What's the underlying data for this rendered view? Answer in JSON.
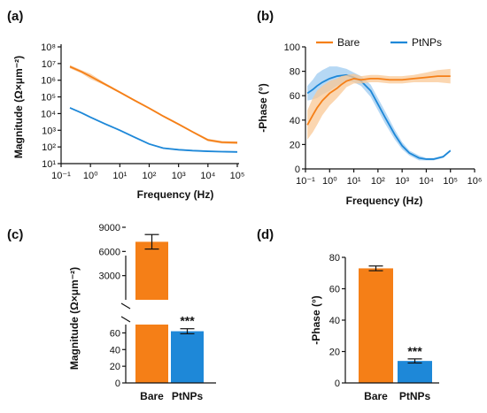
{
  "panels": {
    "a": "(a)",
    "b": "(b)",
    "c": "(c)",
    "d": "(d)"
  },
  "colors": {
    "bare": "#F57F17",
    "ptnps": "#1E88D8",
    "bare_band": "#F9C896",
    "ptnps_band": "#9DCBF0"
  },
  "chart_data": [
    {
      "id": "a",
      "type": "line",
      "xscale": "log",
      "yscale": "log",
      "xlabel": "Frequency (Hz)",
      "ylabel": "Magnitude (Ω×μm⁻²)",
      "xlim": [
        0.1,
        100000
      ],
      "ylim": [
        10,
        100000000
      ],
      "xticks": [
        "10⁻¹",
        "10⁰",
        "10¹",
        "10²",
        "10³",
        "10⁴",
        "10⁵"
      ],
      "yticks": [
        "10¹",
        "10²",
        "10³",
        "10⁴",
        "10⁵",
        "10⁶",
        "10⁷",
        "10⁸"
      ],
      "series": [
        {
          "name": "Bare",
          "x": [
            0.2,
            0.5,
            1,
            3,
            10,
            30,
            100,
            300,
            1000,
            3000,
            10000,
            30000,
            100000
          ],
          "y": [
            6500000,
            3200000,
            1700000,
            600000,
            190000,
            65000,
            21000,
            7000,
            2300,
            800,
            260,
            190,
            180
          ],
          "band": [
            0.25,
            0.25,
            0.45,
            0.2,
            0.15,
            0.15,
            0.15,
            0.15,
            0.15,
            0.15,
            0.2,
            0.2,
            0.2
          ]
        },
        {
          "name": "PtNPs",
          "x": [
            0.2,
            0.5,
            1,
            3,
            10,
            30,
            100,
            300,
            1000,
            3000,
            10000,
            30000,
            100000
          ],
          "y": [
            22000,
            11000,
            6000,
            2500,
            1000,
            400,
            150,
            85,
            68,
            60,
            55,
            52,
            50
          ],
          "band": [
            0.1,
            0.1,
            0.1,
            0.1,
            0.1,
            0.1,
            0.1,
            0.1,
            0.1,
            0.1,
            0.1,
            0.1,
            0.1
          ]
        }
      ]
    },
    {
      "id": "b",
      "type": "line",
      "xscale": "log",
      "xlabel": "Frequency (Hz)",
      "ylabel": "-Phase (°)",
      "xlim": [
        0.1,
        1000000
      ],
      "ylim": [
        0,
        100
      ],
      "xticks": [
        "10⁻¹",
        "10⁰",
        "10¹",
        "10²",
        "10³",
        "10⁴",
        "10⁵",
        "10⁶"
      ],
      "yticks": [
        "0",
        "20",
        "40",
        "60",
        "80",
        "100"
      ],
      "legend": "top-right",
      "series": [
        {
          "name": "Bare",
          "x": [
            0.12,
            0.2,
            0.3,
            0.5,
            1,
            2,
            3,
            5,
            10,
            20,
            50,
            100,
            300,
            1000,
            3000,
            10000,
            30000,
            100000
          ],
          "y": [
            36,
            44,
            50,
            56,
            62,
            66,
            69,
            72,
            74,
            73,
            74,
            74,
            73,
            73,
            74,
            75,
            76,
            76
          ],
          "band": [
            12,
            14,
            14,
            12,
            10,
            8,
            7,
            5,
            4,
            3,
            3,
            3,
            3,
            3,
            3,
            4,
            5,
            6
          ]
        },
        {
          "name": "PtNPs",
          "x": [
            0.12,
            0.2,
            0.3,
            0.5,
            1,
            2,
            5,
            10,
            20,
            50,
            100,
            200,
            500,
            1000,
            2000,
            5000,
            10000,
            20000,
            50000,
            100000
          ],
          "y": [
            62,
            65,
            68,
            71,
            74,
            76,
            77,
            75,
            72,
            64,
            53,
            42,
            28,
            19,
            13,
            9,
            8,
            8,
            10,
            15
          ],
          "band": [
            6,
            8,
            10,
            10,
            10,
            8,
            5,
            4,
            4,
            5,
            5,
            5,
            4,
            3,
            2,
            2,
            1,
            1,
            1,
            1
          ]
        }
      ]
    },
    {
      "id": "c",
      "type": "bar",
      "categories": [
        "Bare",
        "PtNPs"
      ],
      "values": [
        7200,
        62
      ],
      "errors": [
        900,
        3
      ],
      "ylabel": "Magnitude (Ω×μm⁻²)",
      "broken_axis": true,
      "ylim_lower": [
        0,
        70
      ],
      "ylim_upper": [
        0,
        9000
      ],
      "yticks_lower": [
        "0",
        "20",
        "40",
        "60"
      ],
      "yticks_upper": [
        "3000",
        "6000",
        "9000"
      ],
      "annotation": "***"
    },
    {
      "id": "d",
      "type": "bar",
      "categories": [
        "Bare",
        "PtNPs"
      ],
      "values": [
        73,
        14
      ],
      "errors": [
        1.5,
        1.3
      ],
      "ylabel": "-Phase (°)",
      "ylim": [
        0,
        80
      ],
      "yticks": [
        "0",
        "20",
        "40",
        "60",
        "80"
      ],
      "annotation": "***"
    }
  ]
}
